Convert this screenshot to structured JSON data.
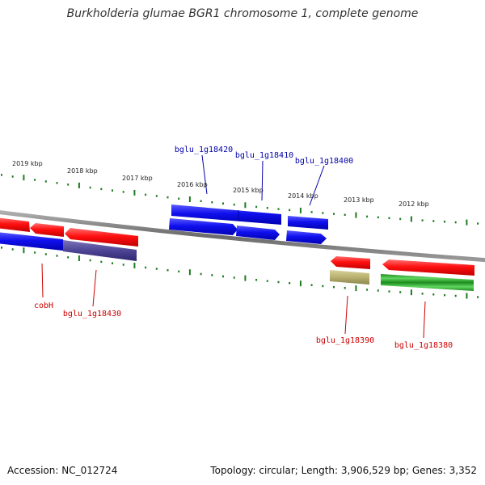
{
  "title": "Burkholderia glumae BGR1 chromosome 1, complete genome",
  "accession_label": "Accession: NC_012724",
  "topology_label": "Topology: circular; Length: 3,906,529 bp; Genes: 3,352",
  "colors": {
    "forward_gene": "#1f00f5",
    "reverse_gene": "#ff0000",
    "label_forward": "#0000aa",
    "label_reverse": "#cc0000",
    "tick": "#1e7a1e",
    "backbone": "#777777",
    "highlight_purple": "#4d4494",
    "highlight_khaki": "#b8b070",
    "highlight_green": "#2db32d"
  },
  "ticks": [
    "2019 kbp",
    "2018 kbp",
    "2017 kbp",
    "2016 kbp",
    "2015 kbp",
    "2014 kbp",
    "2013 kbp",
    "2012 kbp"
  ],
  "gene_labels": [
    {
      "name": "bglu_1g18420",
      "strand": "forward"
    },
    {
      "name": "bglu_1g18410",
      "strand": "forward"
    },
    {
      "name": "bglu_1g18400",
      "strand": "forward"
    },
    {
      "name": "cobH",
      "strand": "reverse"
    },
    {
      "name": "bglu_1g18430",
      "strand": "reverse"
    },
    {
      "name": "bglu_1g18390",
      "strand": "reverse"
    },
    {
      "name": "bglu_1g18380",
      "strand": "reverse"
    }
  ]
}
